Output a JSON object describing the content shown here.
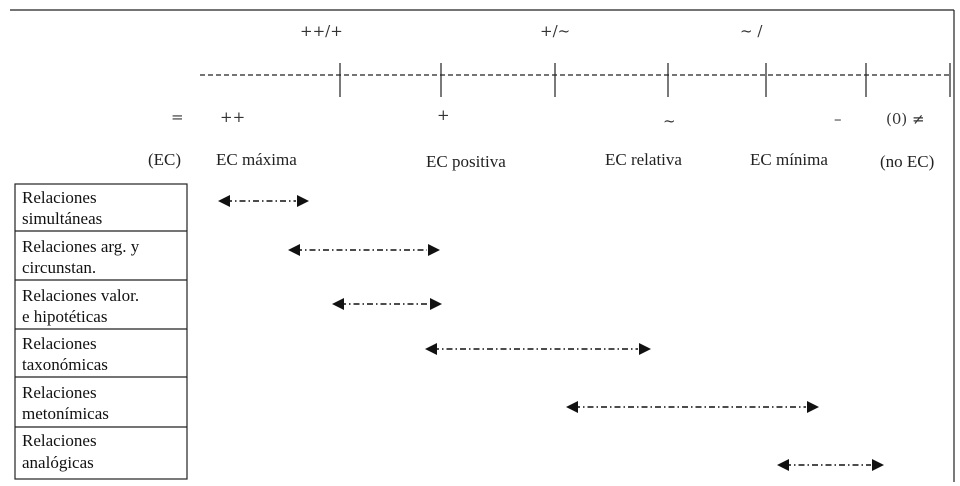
{
  "top_labels": [
    "++/+",
    "+/~",
    "~ /"
  ],
  "scale_symbols": [
    "=",
    "++",
    "+",
    "~",
    "–",
    "(0) ≠"
  ],
  "categories": [
    "(EC)",
    "EC máxima",
    "EC positiva",
    "EC relativa",
    "EC mínima",
    "(no EC)"
  ],
  "relations": [
    {
      "lines": [
        "Relaciones",
        "simultáneas"
      ]
    },
    {
      "lines": [
        "Relaciones arg. y",
        "circunstan."
      ]
    },
    {
      "lines": [
        "Relaciones valor.",
        "e hipotéticas"
      ]
    },
    {
      "lines": [
        "Relaciones",
        "taxonómicas"
      ]
    },
    {
      "lines": [
        "Relaciones",
        "metonímicas"
      ]
    },
    {
      "lines": [
        "Relaciones",
        "analógicas"
      ]
    }
  ],
  "colors": {
    "line": "#222222",
    "arrow": "#111111"
  }
}
